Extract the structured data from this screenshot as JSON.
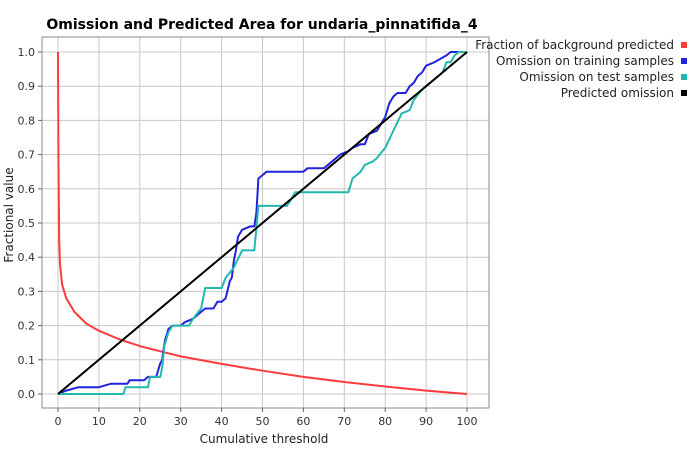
{
  "chart_data": {
    "type": "line",
    "title": "Omission and Predicted Area for undaria_pinnatifida_4",
    "xlabel": "Cumulative threshold",
    "ylabel": "Fractional value",
    "xlim": [
      0,
      100
    ],
    "ylim": [
      0,
      1
    ],
    "x_ticks": [
      0,
      10,
      20,
      30,
      40,
      50,
      60,
      70,
      80,
      90,
      100
    ],
    "y_ticks": [
      0.0,
      0.1,
      0.2,
      0.3,
      0.4,
      0.5,
      0.6,
      0.7,
      0.8,
      0.9,
      1.0
    ],
    "x_tick_labels": [
      "0",
      "10",
      "20",
      "30",
      "40",
      "50",
      "60",
      "70",
      "80",
      "90",
      "100"
    ],
    "y_tick_labels": [
      "0.0",
      "0.1",
      "0.2",
      "0.3",
      "0.4",
      "0.5",
      "0.6",
      "0.7",
      "0.8",
      "0.9",
      "1.0"
    ],
    "grid": true,
    "legend_position": "right",
    "series": [
      {
        "name": "Fraction of background predicted",
        "color": "#ff3b3b",
        "points": [
          [
            0,
            1.0
          ],
          [
            0.1,
            0.7
          ],
          [
            0.3,
            0.45
          ],
          [
            0.5,
            0.38
          ],
          [
            1,
            0.32
          ],
          [
            2,
            0.28
          ],
          [
            4,
            0.24
          ],
          [
            7,
            0.205
          ],
          [
            10,
            0.185
          ],
          [
            15,
            0.16
          ],
          [
            20,
            0.14
          ],
          [
            25,
            0.125
          ],
          [
            30,
            0.11
          ],
          [
            40,
            0.088
          ],
          [
            50,
            0.068
          ],
          [
            60,
            0.05
          ],
          [
            70,
            0.035
          ],
          [
            80,
            0.022
          ],
          [
            90,
            0.01
          ],
          [
            100,
            0.0
          ]
        ]
      },
      {
        "name": "Omission on training samples",
        "color": "#2222dd",
        "points": [
          [
            0,
            0
          ],
          [
            2,
            0.01
          ],
          [
            5,
            0.02
          ],
          [
            10,
            0.02
          ],
          [
            13,
            0.03
          ],
          [
            17,
            0.03
          ],
          [
            17.5,
            0.04
          ],
          [
            21,
            0.04
          ],
          [
            22,
            0.05
          ],
          [
            24,
            0.05
          ],
          [
            25,
            0.09
          ],
          [
            25.5,
            0.1
          ],
          [
            25.8,
            0.13
          ],
          [
            26.2,
            0.16
          ],
          [
            26.5,
            0.17
          ],
          [
            27,
            0.19
          ],
          [
            28,
            0.2
          ],
          [
            30,
            0.2
          ],
          [
            31,
            0.21
          ],
          [
            33,
            0.22
          ],
          [
            35,
            0.24
          ],
          [
            36,
            0.25
          ],
          [
            38,
            0.25
          ],
          [
            39,
            0.27
          ],
          [
            40,
            0.27
          ],
          [
            41,
            0.28
          ],
          [
            42,
            0.33
          ],
          [
            42.5,
            0.34
          ],
          [
            43,
            0.39
          ],
          [
            43.5,
            0.42
          ],
          [
            44,
            0.46
          ],
          [
            45,
            0.48
          ],
          [
            47,
            0.49
          ],
          [
            48,
            0.49
          ],
          [
            48.5,
            0.53
          ],
          [
            49,
            0.63
          ],
          [
            50,
            0.64
          ],
          [
            51,
            0.65
          ],
          [
            60,
            0.65
          ],
          [
            61,
            0.66
          ],
          [
            65,
            0.66
          ],
          [
            69,
            0.7
          ],
          [
            71,
            0.71
          ],
          [
            72,
            0.72
          ],
          [
            74,
            0.73
          ],
          [
            75,
            0.73
          ],
          [
            76,
            0.76
          ],
          [
            78,
            0.77
          ],
          [
            79,
            0.79
          ],
          [
            80,
            0.81
          ],
          [
            81,
            0.85
          ],
          [
            82,
            0.87
          ],
          [
            83,
            0.88
          ],
          [
            85,
            0.88
          ],
          [
            86,
            0.9
          ],
          [
            87,
            0.91
          ],
          [
            88,
            0.93
          ],
          [
            89,
            0.94
          ],
          [
            90,
            0.96
          ],
          [
            92,
            0.97
          ],
          [
            95,
            0.99
          ],
          [
            96,
            1.0
          ],
          [
            100,
            1.0
          ]
        ]
      },
      {
        "name": "Omission on test samples",
        "color": "#22b8b0",
        "points": [
          [
            0,
            0
          ],
          [
            10,
            0
          ],
          [
            16,
            0
          ],
          [
            16.5,
            0.02
          ],
          [
            22,
            0.02
          ],
          [
            22.5,
            0.05
          ],
          [
            25,
            0.05
          ],
          [
            25.5,
            0.08
          ],
          [
            26,
            0.14
          ],
          [
            27,
            0.18
          ],
          [
            28,
            0.2
          ],
          [
            32,
            0.2
          ],
          [
            33,
            0.22
          ],
          [
            35,
            0.25
          ],
          [
            36,
            0.31
          ],
          [
            40,
            0.31
          ],
          [
            41,
            0.34
          ],
          [
            43,
            0.37
          ],
          [
            45,
            0.42
          ],
          [
            48,
            0.42
          ],
          [
            49,
            0.55
          ],
          [
            56,
            0.55
          ],
          [
            57,
            0.57
          ],
          [
            58,
            0.59
          ],
          [
            71,
            0.59
          ],
          [
            72,
            0.63
          ],
          [
            74,
            0.65
          ],
          [
            75,
            0.67
          ],
          [
            77,
            0.68
          ],
          [
            78,
            0.69
          ],
          [
            80,
            0.72
          ],
          [
            82,
            0.77
          ],
          [
            84,
            0.82
          ],
          [
            86,
            0.83
          ],
          [
            87,
            0.86
          ],
          [
            89,
            0.89
          ],
          [
            90,
            0.9
          ],
          [
            92,
            0.92
          ],
          [
            94,
            0.94
          ],
          [
            95,
            0.97
          ],
          [
            96,
            0.97
          ],
          [
            97,
            0.99
          ],
          [
            98,
            1.0
          ],
          [
            100,
            1.0
          ]
        ]
      },
      {
        "name": "Predicted omission",
        "color": "#000000",
        "points": [
          [
            0,
            0
          ],
          [
            100,
            1
          ]
        ]
      }
    ]
  }
}
